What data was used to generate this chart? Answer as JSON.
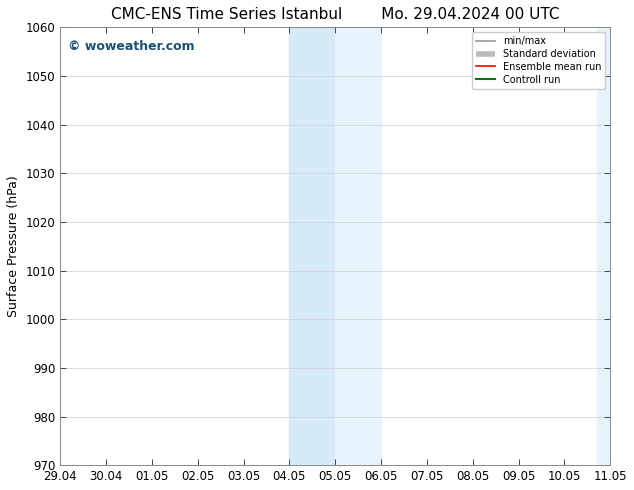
{
  "title_left": "CMC-ENS Time Series Istanbul",
  "title_right": "Mo. 29.04.2024 00 UTC",
  "ylabel": "Surface Pressure (hPa)",
  "ylim": [
    970,
    1060
  ],
  "yticks": [
    970,
    980,
    990,
    1000,
    1010,
    1020,
    1030,
    1040,
    1050,
    1060
  ],
  "xticks": [
    "29.04",
    "30.04",
    "01.05",
    "02.05",
    "03.05",
    "04.05",
    "05.05",
    "06.05",
    "07.05",
    "08.05",
    "09.05",
    "10.05",
    "11.05"
  ],
  "xtick_values": [
    0,
    1,
    2,
    3,
    4,
    5,
    6,
    7,
    8,
    9,
    10,
    11,
    12
  ],
  "shaded_region_1": [
    5,
    6
  ],
  "shaded_region_2": [
    6,
    7
  ],
  "shaded_color_1": "#d6eaf8",
  "shaded_color_2": "#e8f4fb",
  "shaded_color_end": "#e8f4fb",
  "watermark_text": "© woweather.com",
  "watermark_color": "#1a5276",
  "bg_color": "#ffffff",
  "legend_entries": [
    "min/max",
    "Standard deviation",
    "Ensemble mean run",
    "Controll run"
  ],
  "legend_colors": [
    "#999999",
    "#bbbbbb",
    "#ff0000",
    "#007700"
  ],
  "title_fontsize": 11,
  "tick_fontsize": 8.5,
  "ylabel_fontsize": 9,
  "watermark_fontsize": 9
}
